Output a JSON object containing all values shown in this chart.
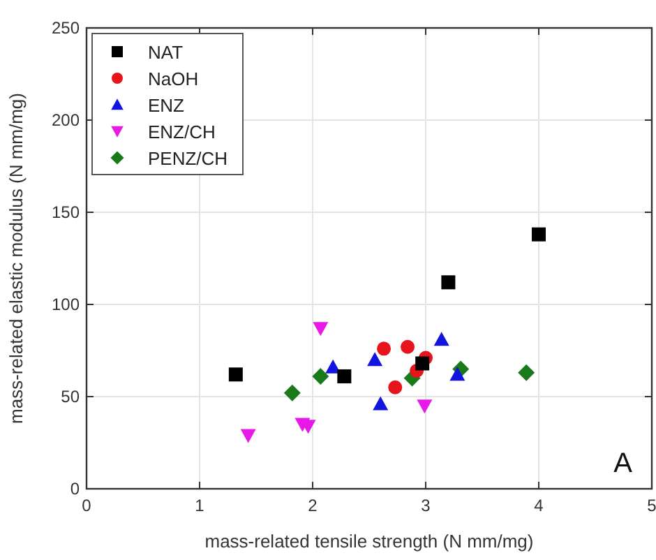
{
  "chart_data": {
    "type": "scatter",
    "xlabel": "mass-related tensile strength (N mm/mg)",
    "ylabel": "mass-related elastic modulus (N mm/mg)",
    "xlim": [
      0,
      5
    ],
    "ylim": [
      0,
      250
    ],
    "xticks": [
      0,
      1,
      2,
      3,
      4,
      5
    ],
    "yticks": [
      0,
      50,
      100,
      150,
      200,
      250
    ],
    "grid": true,
    "legend": "top left",
    "annotations": [
      "A"
    ],
    "series": [
      {
        "name": "NAT",
        "color": "#000000",
        "marker": "square",
        "x": [
          1.32,
          2.28,
          2.97,
          3.2,
          4.0
        ],
        "values": [
          62,
          61,
          68,
          112,
          138
        ]
      },
      {
        "name": "NaOH",
        "color": "#e8141c",
        "marker": "circle",
        "x": [
          2.63,
          2.84,
          2.73,
          2.92,
          3.0
        ],
        "values": [
          76,
          77,
          55,
          64,
          71
        ]
      },
      {
        "name": "ENZ",
        "color": "#1414e0",
        "marker": "triangle",
        "x": [
          2.18,
          2.55,
          2.6,
          3.14,
          3.28
        ],
        "values": [
          66,
          70,
          46,
          81,
          62
        ]
      },
      {
        "name": "ENZ/CH",
        "color": "#e818e8",
        "marker": "triangle-down",
        "x": [
          2.07,
          1.43,
          1.91,
          1.96,
          2.99
        ],
        "values": [
          87,
          29,
          35,
          34,
          45
        ]
      },
      {
        "name": "PENZ/CH",
        "color": "#1a7a1a",
        "marker": "diamond",
        "x": [
          1.82,
          2.07,
          2.88,
          3.31,
          3.89
        ],
        "values": [
          52,
          61,
          60,
          65,
          63
        ]
      }
    ]
  }
}
